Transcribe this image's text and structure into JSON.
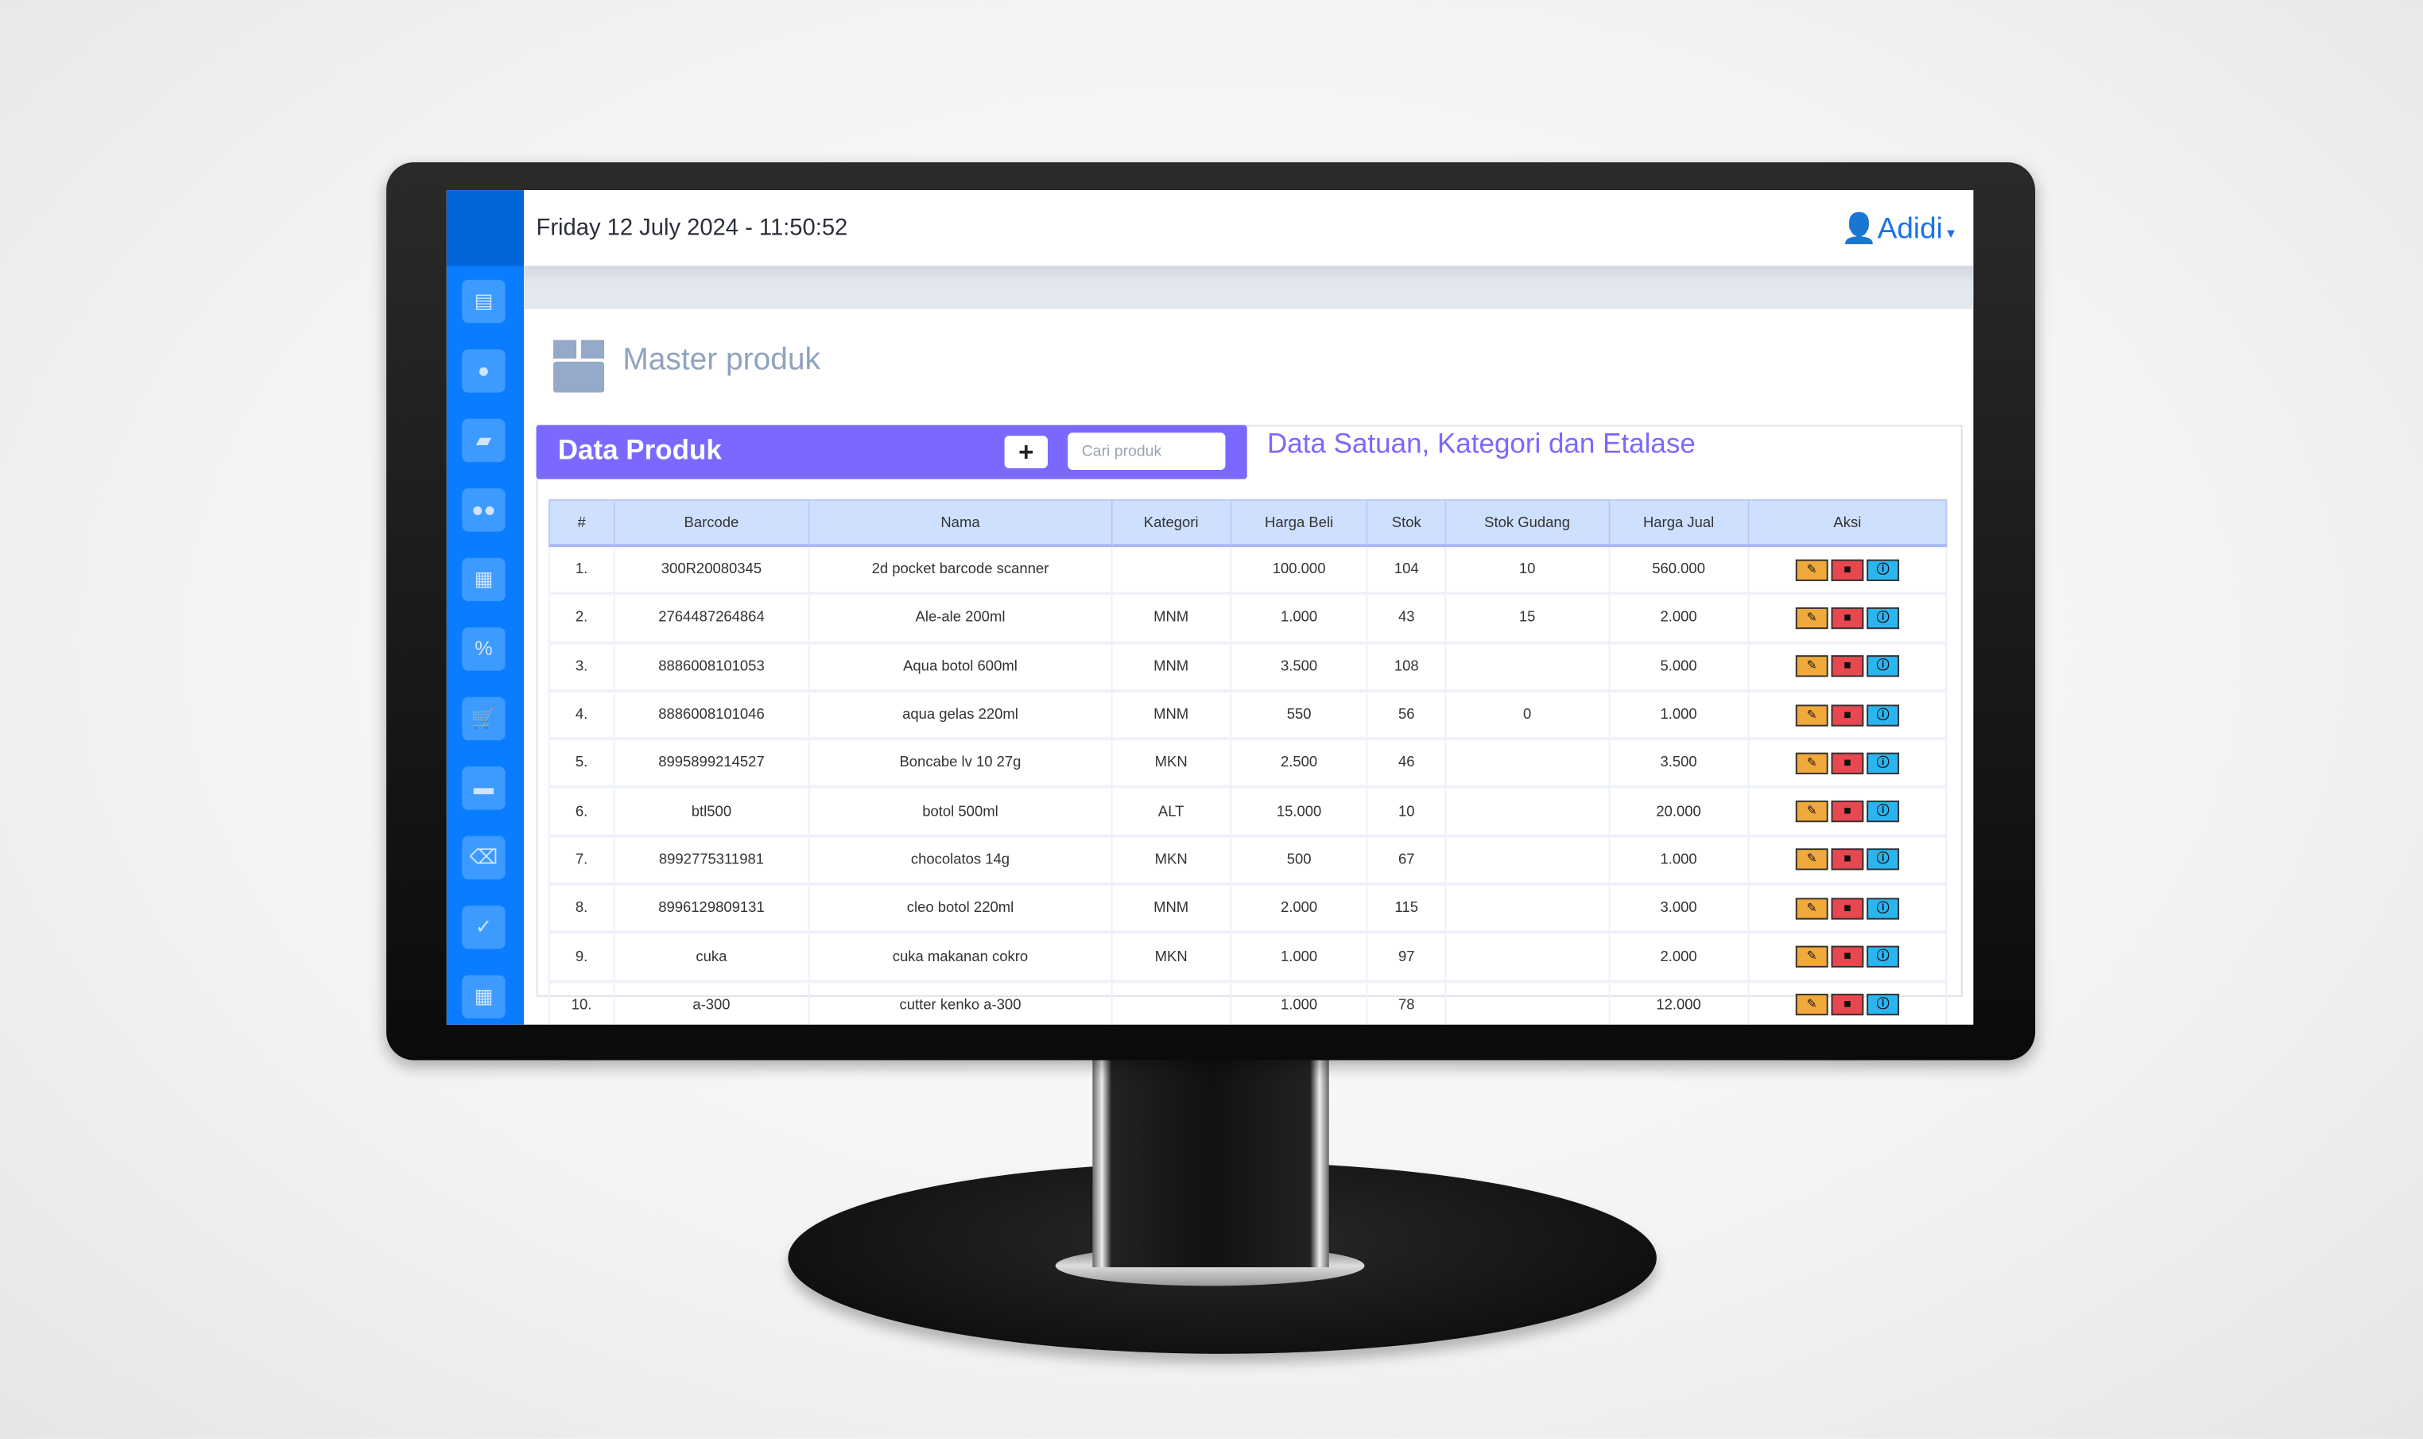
{
  "header": {
    "datetime": "Friday 12 July 2024 - 11:50:52",
    "user_name": "Adidi"
  },
  "sidebar": {
    "items": [
      {
        "icon": "cash-register-icon",
        "glyph": "▤"
      },
      {
        "icon": "user-tie-icon",
        "glyph": "●"
      },
      {
        "icon": "shopping-bag-icon",
        "glyph": "▰"
      },
      {
        "icon": "users-icon",
        "glyph": "●●"
      },
      {
        "icon": "warehouse-icon",
        "glyph": "▦"
      },
      {
        "icon": "percent-icon",
        "glyph": "%"
      },
      {
        "icon": "cart-icon",
        "glyph": "🛒"
      },
      {
        "icon": "credit-card-icon",
        "glyph": "▬"
      },
      {
        "icon": "backspace-icon",
        "glyph": "⌫"
      },
      {
        "icon": "clipboard-check-icon",
        "glyph": "✓"
      },
      {
        "icon": "calculator-icon",
        "glyph": "▦"
      }
    ]
  },
  "page": {
    "title": "Master produk",
    "title_icon": "box-icon"
  },
  "panel": {
    "title": "Data Produk",
    "add_label": "+",
    "search_placeholder": "Cari produk",
    "tab_secondary": "Data Satuan, Kategori dan Etalase"
  },
  "colors": {
    "sidebar": "#0a7cff",
    "accent": "#7b68ff",
    "table_header": "#cfe0ff",
    "edit": "#f0a93a",
    "delete": "#e9474f",
    "info": "#2bb5f0"
  },
  "table": {
    "columns": [
      "#",
      "Barcode",
      "Nama",
      "Kategori",
      "Harga Beli",
      "Stok",
      "Stok Gudang",
      "Harga Jual",
      "Aksi"
    ],
    "rows": [
      [
        "1.",
        "300R20080345",
        "2d pocket barcode scanner",
        "",
        "100.000",
        "104",
        "10",
        "560.000"
      ],
      [
        "2.",
        "2764487264864",
        "Ale-ale 200ml",
        "MNM",
        "1.000",
        "43",
        "15",
        "2.000"
      ],
      [
        "3.",
        "8886008101053",
        "Aqua botol 600ml",
        "MNM",
        "3.500",
        "108",
        "",
        "5.000"
      ],
      [
        "4.",
        "8886008101046",
        "aqua gelas 220ml",
        "MNM",
        "550",
        "56",
        "0",
        "1.000"
      ],
      [
        "5.",
        "8995899214527",
        "Boncabe lv 10 27g",
        "MKN",
        "2.500",
        "46",
        "",
        "3.500"
      ],
      [
        "6.",
        "btl500",
        "botol 500ml",
        "ALT",
        "15.000",
        "10",
        "",
        "20.000"
      ],
      [
        "7.",
        "8992775311981",
        "chocolatos 14g",
        "MKN",
        "500",
        "67",
        "",
        "1.000"
      ],
      [
        "8.",
        "8996129809131",
        "cleo botol 220ml",
        "MNM",
        "2.000",
        "115",
        "",
        "3.000"
      ],
      [
        "9.",
        "cuka",
        "cuka makanan cokro",
        "MKN",
        "1.000",
        "97",
        "",
        "2.000"
      ],
      [
        "10.",
        "a-300",
        "cutter kenko a-300",
        "",
        "1.000",
        "78",
        "",
        "12.000"
      ]
    ]
  }
}
